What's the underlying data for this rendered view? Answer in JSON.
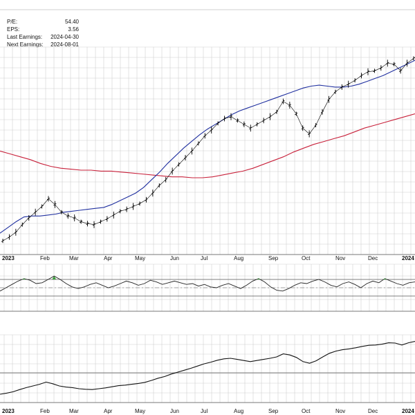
{
  "stats": {
    "pe_label": "P/E:",
    "pe_value": "54.40",
    "eps_label": "EPS:",
    "eps_value": "3.56",
    "last_earnings_label": "Last Earnings:",
    "last_earnings_value": "2024-04-30",
    "next_earnings_label": "Next Earnings:",
    "next_earnings_value": "2024-08-01"
  },
  "colors": {
    "price": "#000000",
    "ma_short": "#1f2f9f",
    "ma_long": "#c8203a",
    "grid": "#d0d0d0",
    "rsi_high_fill": "#3a9a3a"
  },
  "chart_data": {
    "type": "line",
    "x_tick_labels": [
      "2023",
      "Feb",
      "Mar",
      "Apr",
      "May",
      "Jun",
      "Jul",
      "Aug",
      "Sep",
      "Oct",
      "Nov",
      "Dec",
      "2024"
    ],
    "series": [
      {
        "values": [
          10,
          14,
          19,
          27,
          34,
          40,
          46,
          54,
          48,
          40,
          36,
          34,
          30,
          28,
          27,
          30,
          33,
          37,
          41,
          43,
          46,
          49,
          53,
          60,
          68,
          74,
          83,
          90,
          97,
          104,
          112,
          120,
          126,
          133,
          138,
          140,
          136,
          132,
          128,
          132,
          136,
          140,
          145,
          156,
          152,
          143,
          128,
          122,
          131,
          145,
          158,
          166,
          171,
          174,
          178,
          183,
          187,
          188,
          191,
          196,
          195,
          188,
          196,
          201
        ]
      },
      {
        "values": [
          18,
          24,
          30,
          35,
          36,
          36,
          37,
          38,
          40,
          41,
          42,
          43,
          44,
          45,
          48,
          52,
          56,
          60,
          66,
          74,
          82,
          91,
          99,
          107,
          114,
          121,
          127,
          132,
          137,
          142,
          146,
          149,
          152,
          155,
          158,
          161,
          164,
          167,
          170,
          172,
          173,
          172,
          171,
          171,
          172,
          174,
          177,
          180,
          183,
          187,
          191,
          195,
          199
        ]
      },
      {
        "values": [
          104,
          101,
          98,
          95,
          91,
          88,
          86,
          85,
          84,
          84,
          83,
          83,
          82,
          81,
          80,
          79,
          78,
          77,
          77,
          76,
          76,
          77,
          79,
          81,
          83,
          86,
          90,
          94,
          98,
          103,
          107,
          111,
          114,
          117,
          120,
          124,
          128,
          131,
          134,
          137,
          140,
          143
        ]
      }
    ],
    "rsi": {
      "values": [
        42,
        50,
        58,
        66,
        72,
        68,
        60,
        62,
        70,
        78,
        70,
        60,
        52,
        48,
        52,
        58,
        62,
        56,
        50,
        54,
        60,
        66,
        62,
        56,
        60,
        68,
        64,
        58,
        62,
        66,
        62,
        58,
        60,
        54,
        58,
        52,
        50,
        56,
        60,
        54,
        48,
        56,
        66,
        72,
        64,
        52,
        44,
        42,
        48,
        56,
        62,
        60,
        66,
        70,
        64,
        56,
        52,
        60,
        64,
        58,
        50,
        60,
        66,
        62,
        72,
        66,
        60,
        56,
        62,
        64
      ],
      "upper_level": 70,
      "lower_level": 30
    },
    "relative": {
      "values": [
        10,
        14,
        19,
        27,
        34,
        40,
        46,
        54,
        48,
        40,
        36,
        34,
        30,
        28,
        27,
        30,
        33,
        37,
        41,
        43,
        46,
        49,
        53,
        60,
        68,
        74,
        83,
        90,
        97,
        104,
        112,
        120,
        126,
        133,
        138,
        140,
        136,
        132,
        128,
        132,
        136,
        140,
        145,
        156,
        152,
        143,
        128,
        122,
        131,
        145,
        158,
        166,
        171,
        174,
        178,
        183,
        187,
        188,
        191,
        196,
        195,
        188,
        196,
        201
      ]
    }
  }
}
